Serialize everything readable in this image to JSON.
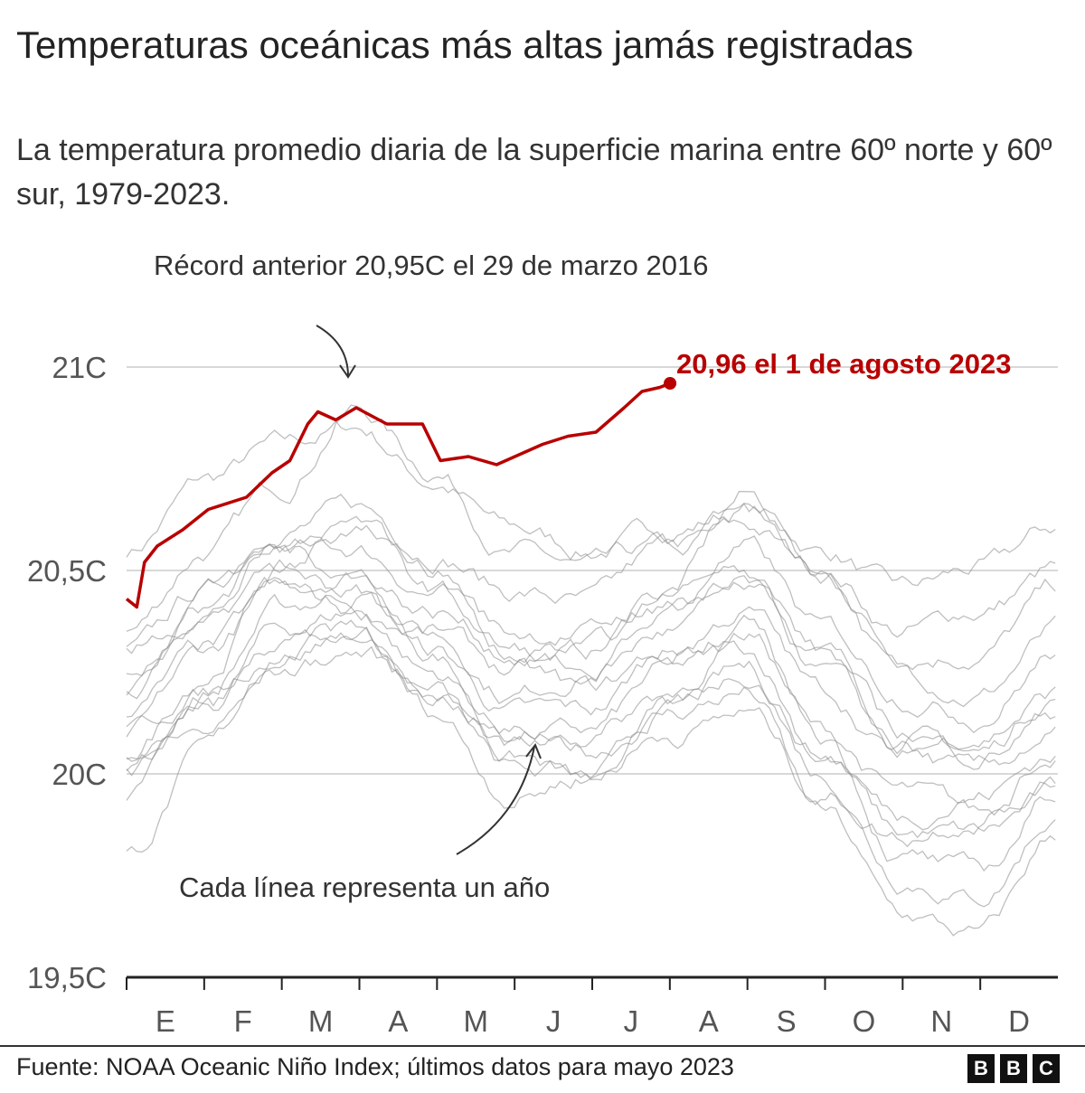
{
  "header": {
    "title": "Temperaturas oceánicas más altas jamás registradas",
    "subtitle": "La temperatura promedio diaria de la superficie marina entre 60º norte y 60º sur, 1979-2023."
  },
  "chart_data": {
    "type": "line",
    "title": "Temperaturas oceánicas más altas jamás registradas",
    "subtitle": "La temperatura promedio diaria de la superficie marina entre 60º norte y 60º sur, 1979-2023.",
    "xlabel": "",
    "ylabel": "",
    "x_ticks": [
      "E",
      "F",
      "M",
      "A",
      "M",
      "J",
      "J",
      "A",
      "S",
      "O",
      "N",
      "D"
    ],
    "y_ticks": [
      "19,5C",
      "20C",
      "20,5C",
      "21C"
    ],
    "y_tick_values": [
      19.5,
      20,
      20.5,
      21
    ],
    "ylim": [
      19.5,
      21
    ],
    "x_unit": "day of year",
    "xlim": [
      0,
      365
    ],
    "grid": "horizontal",
    "highlight_color": "#b80000",
    "background_line_color": "#999999",
    "highlight_series": {
      "x": [
        0,
        4,
        7,
        12,
        22,
        32,
        47,
        57,
        64,
        71,
        75,
        82,
        90,
        102,
        116,
        123,
        134,
        145,
        163,
        173,
        184,
        195,
        202,
        209,
        213
      ],
      "y": [
        20.43,
        20.41,
        20.52,
        20.56,
        20.6,
        20.65,
        20.68,
        20.74,
        20.77,
        20.86,
        20.89,
        20.87,
        20.9,
        20.86,
        20.86,
        20.77,
        20.78,
        20.76,
        20.81,
        20.83,
        20.84,
        20.9,
        20.94,
        20.95,
        20.96
      ]
    },
    "background_series_monthly_x": [
      0,
      31,
      59,
      90,
      120,
      151,
      181,
      212,
      243,
      273,
      304,
      334,
      365
    ],
    "background_series": [
      [
        20.55,
        20.72,
        20.8,
        20.85,
        20.72,
        20.6,
        20.55,
        20.6,
        20.65,
        20.55,
        20.45,
        20.5,
        20.6
      ],
      [
        20.35,
        20.55,
        20.7,
        20.9,
        20.75,
        20.55,
        20.5,
        20.55,
        20.6,
        20.5,
        20.35,
        20.4,
        20.5
      ],
      [
        20.3,
        20.45,
        20.6,
        20.65,
        20.55,
        20.45,
        20.42,
        20.55,
        20.65,
        20.48,
        20.3,
        20.3,
        20.45
      ],
      [
        20.2,
        20.4,
        20.55,
        20.55,
        20.45,
        20.3,
        20.3,
        20.45,
        20.68,
        20.5,
        20.25,
        20.2,
        20.35
      ],
      [
        20.1,
        20.3,
        20.45,
        20.5,
        20.35,
        20.2,
        20.25,
        20.4,
        20.5,
        20.3,
        20.1,
        20.05,
        20.2
      ],
      [
        20.0,
        20.2,
        20.4,
        20.45,
        20.3,
        20.15,
        20.15,
        20.3,
        20.35,
        20.1,
        19.95,
        19.9,
        20.0
      ],
      [
        19.95,
        20.15,
        20.35,
        20.4,
        20.25,
        20.1,
        20.1,
        20.25,
        20.3,
        20.05,
        19.85,
        19.85,
        19.95
      ],
      [
        20.05,
        20.25,
        20.5,
        20.45,
        20.3,
        20.05,
        19.98,
        20.15,
        20.25,
        20.0,
        19.75,
        19.7,
        19.9
      ],
      [
        19.8,
        20.05,
        20.3,
        20.35,
        20.2,
        20.05,
        20.05,
        20.15,
        20.2,
        19.9,
        19.65,
        19.6,
        19.85
      ],
      [
        20.15,
        20.3,
        20.45,
        20.4,
        20.35,
        20.25,
        20.2,
        20.3,
        20.4,
        20.2,
        20.05,
        20.1,
        20.2
      ],
      [
        20.25,
        20.35,
        20.5,
        20.6,
        20.5,
        20.35,
        20.35,
        20.45,
        20.55,
        20.35,
        20.2,
        20.15,
        20.3
      ],
      [
        20.1,
        20.2,
        20.3,
        20.35,
        20.2,
        20.0,
        20.0,
        20.15,
        20.25,
        20.05,
        19.9,
        19.95,
        20.05
      ],
      [
        20.3,
        20.4,
        20.55,
        20.5,
        20.4,
        20.3,
        20.25,
        20.35,
        20.45,
        20.25,
        20.05,
        20.0,
        20.1
      ],
      [
        20.0,
        20.15,
        20.3,
        20.35,
        20.15,
        19.95,
        20.0,
        20.1,
        20.15,
        19.95,
        19.85,
        19.9,
        20.05
      ],
      [
        20.2,
        20.45,
        20.55,
        20.6,
        20.45,
        20.3,
        20.3,
        20.4,
        20.5,
        20.3,
        20.1,
        20.05,
        20.15
      ],
      [
        20.05,
        20.1,
        20.25,
        20.3,
        20.2,
        20.1,
        20.1,
        20.2,
        20.35,
        20.1,
        19.8,
        19.75,
        19.95
      ]
    ],
    "annotations": {
      "previous_record": "Récord anterior 20,95C el 29 de marzo 2016",
      "latest": "20,96 el 1 de agosto 2023",
      "each_line": "Cada línea representa un año"
    }
  },
  "footer": {
    "source": "Fuente: NOAA Oceanic Niño Index; últimos datos para mayo 2023",
    "logo_letters": [
      "B",
      "B",
      "C"
    ]
  }
}
